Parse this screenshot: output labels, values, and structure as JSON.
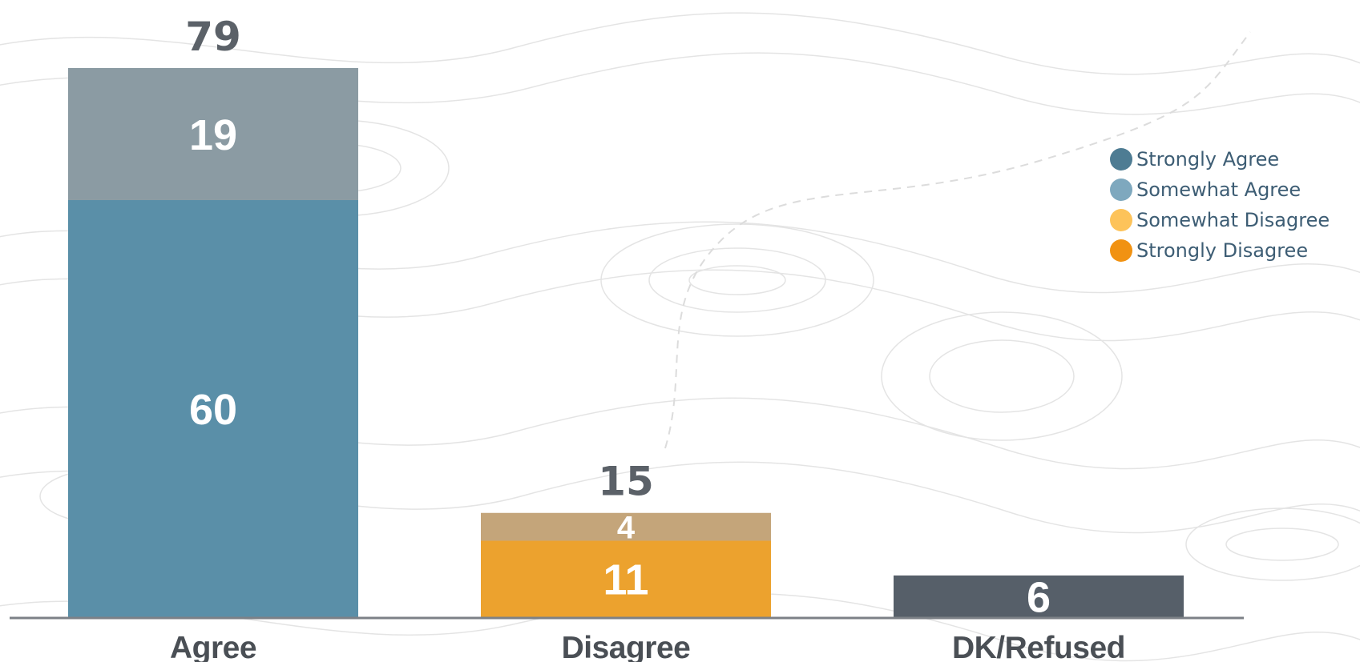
{
  "chart_data": {
    "type": "bar",
    "stacked": true,
    "categories": [
      "Agree",
      "Disagree",
      "DK/Refused"
    ],
    "totals": [
      "79",
      "15",
      ""
    ],
    "bars": [
      {
        "category": "Agree",
        "segments": [
          {
            "series": "Strongly Agree",
            "value": 60,
            "label": "60",
            "color": "#5a8fa8"
          },
          {
            "series": "Somewhat Agree",
            "value": 19,
            "label": "19",
            "color": "#8b9ba3"
          }
        ]
      },
      {
        "category": "Disagree",
        "segments": [
          {
            "series": "Strongly Disagree",
            "value": 11,
            "label": "11",
            "color": "#eca22e"
          },
          {
            "series": "Somewhat Disagree",
            "value": 4,
            "label": "4",
            "color": "#c4a57a"
          }
        ]
      },
      {
        "category": "DK/Refused",
        "segments": [
          {
            "series": "",
            "value": 6,
            "label": "6",
            "color": "#565f69"
          }
        ]
      }
    ],
    "legend": [
      {
        "name": "Strongly Agree",
        "color": "#4e7c93"
      },
      {
        "name": "Somewhat Agree",
        "color": "#7ea8be"
      },
      {
        "name": "Somewhat Disagree",
        "color": "#fdc35a"
      },
      {
        "name": "Strongly Disagree",
        "color": "#f19212"
      }
    ],
    "legend_position": "right",
    "ylim": [
      0,
      79
    ],
    "grid": false,
    "title": "",
    "xlabel": "",
    "ylabel": ""
  }
}
